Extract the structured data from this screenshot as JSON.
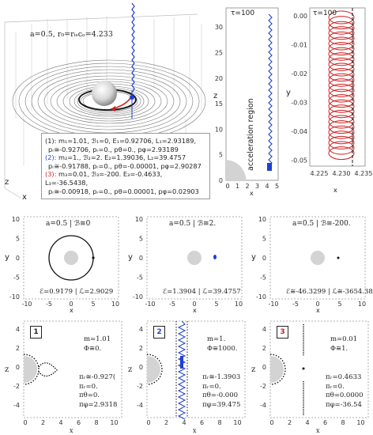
{
  "main3d": {
    "header": "a=0.5, r₀=rᵢₛᴄₒ=4.233",
    "axis_z": "z",
    "axis_x": "x",
    "legend": [
      {
        "lead": "(1):",
        "lead_color": "#222",
        "line1": "m₁=1.01, ℬ₁=0, E₁=0.92706, L₁=2.93189,",
        "line2": "pᵣ≅-0.92706, pᵣ=0., pθ=0., pφ=2.93189"
      },
      {
        "lead": "(2):",
        "lead_color": "#1f3fd1",
        "line1": "m₂=1., ℬ₂=2. E₂=1.39036, L₂=39.4757",
        "line2": "pᵣ≅-0.91788, pᵣ=0., pθ=-0.00001, pφ=2.90287"
      },
      {
        "lead": "(3):",
        "lead_color": "#d11f1f",
        "line1": "m₃=0.01, ℬ₃=-200. E₃=-0.4633, L₃=-36.5438,",
        "line2": "pᵣ≅-0.00918, pᵣ=0., pθ=0.00001, pφ=0.02903"
      }
    ]
  },
  "zplot": {
    "tau": "τ=100",
    "ylabel": "z",
    "xlabel": "x",
    "annotation": "acceleration region",
    "yticks": [
      "0",
      "5",
      "10",
      "15",
      "20",
      "25",
      "30"
    ],
    "xticks": [
      "0",
      "1",
      "2",
      "3",
      "4",
      "5"
    ]
  },
  "yzoom": {
    "tau": "τ=100",
    "ylabel": "y",
    "xlabel": "x",
    "yticks": [
      "0.00",
      "-0.01",
      "-0.02",
      "-0.03",
      "-0.04",
      "-0.05"
    ],
    "xticks": [
      "4.225",
      "4.230",
      "4.235"
    ]
  },
  "middle": [
    {
      "title": "a=0.5 | ℬ≅0",
      "stats": "ℰ=0.9179 | ℒ=2.9029"
    },
    {
      "title": "a=0.5 | ℬ≅2.",
      "stats": "ℰ=1.3904 | ℒ=39.4757"
    },
    {
      "title": "a=0.5 | ℬ≅-200.",
      "stats": "ℰ≅-46.3299 | ℒ≅-3654.38"
    }
  ],
  "middle_axes": {
    "ylabel": "y",
    "xlabel": "x",
    "yticks": [
      "10",
      "5",
      "0",
      "-5",
      "-10"
    ],
    "xticks": [
      "-10",
      "-5",
      "0",
      "5",
      "10"
    ]
  },
  "bottom": [
    {
      "badge": "1",
      "badge_color": "#222",
      "m": "m=1.01",
      "phi": "Φ≅0.",
      "p1": "πᵣ≅-0.927(",
      "p2": "πᵣ=0.",
      "p3": "πθ=0.",
      "p4": "πφ=2.9318"
    },
    {
      "badge": "2",
      "badge_color": "#1f3fd1",
      "m": "m=1.",
      "phi": "Φ≅1000.",
      "p1": "πᵣ≅-1.3903",
      "p2": "πᵣ=0.",
      "p3": "πθ=-0.000",
      "p4": "πφ=39.475"
    },
    {
      "badge": "3",
      "badge_color": "#d11f1f",
      "m": "m=0.01",
      "phi": "Φ≅1.",
      "p1": "πᵣ=0.4633",
      "p2": "πᵣ=0.",
      "p3": "πθ=0.0000",
      "p4": "πφ=-36.54"
    }
  ],
  "bottom_axes": {
    "ylabel": "z",
    "xlabel": "x",
    "yticks": [
      "4",
      "2",
      "0",
      "-2",
      "-4"
    ],
    "xticks": [
      "0",
      "2",
      "4",
      "6",
      "8",
      "10"
    ]
  },
  "colors": {
    "blue": "#1f3fd1",
    "red": "#d11f1f",
    "gray": "#d3d3d3"
  }
}
